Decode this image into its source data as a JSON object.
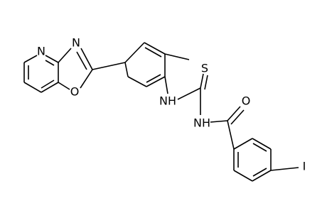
{
  "atoms": [
    {
      "label": "N"
    },
    {
      "label": "N"
    },
    {
      "label": "O"
    },
    {
      "label": "NH"
    },
    {
      "label": "S"
    },
    {
      "label": "NH"
    },
    {
      "label": "O"
    },
    {
      "label": "I"
    }
  ]
}
